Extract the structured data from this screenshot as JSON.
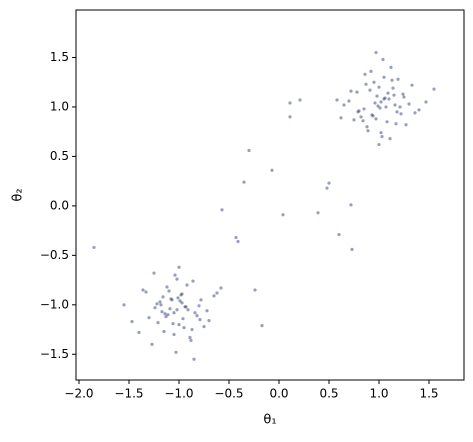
{
  "chart_data": {
    "type": "scatter",
    "xlabel": "θ₁",
    "ylabel": "θ₂",
    "color": "#1a2a6c",
    "xlim": [
      -2.03,
      1.85
    ],
    "ylim": [
      -1.76,
      1.98
    ],
    "xticks": [
      {
        "value": -2.0,
        "label": "−2.0"
      },
      {
        "value": -1.5,
        "label": "−1.5"
      },
      {
        "value": -1.0,
        "label": "−1.0"
      },
      {
        "value": -0.5,
        "label": "−0.5"
      },
      {
        "value": 0,
        "label": "0.0"
      },
      {
        "value": 0.5,
        "label": "0.5"
      },
      {
        "value": 1,
        "label": "1.0"
      },
      {
        "value": 1.5,
        "label": "1.5"
      }
    ],
    "yticks": [
      {
        "value": -1.5,
        "label": "−1.5"
      },
      {
        "value": -1.0,
        "label": "−1.0"
      },
      {
        "value": -0.5,
        "label": "−0.5"
      },
      {
        "value": 0,
        "label": "0.0"
      },
      {
        "value": 0.5,
        "label": "0.5"
      },
      {
        "value": 1,
        "label": "1.0"
      },
      {
        "value": 1.5,
        "label": "1.5"
      }
    ],
    "x": [
      1.02,
      0.85,
      1.15,
      0.97,
      1.21,
      0.78,
      1.05,
      0.93,
      1.1,
      1.3,
      0.88,
      1.0,
      1.18,
      0.7,
      1.08,
      0.95,
      1.25,
      0.82,
      1.12,
      0.99,
      1.4,
      0.65,
      1.03,
      0.91,
      1.17,
      1.06,
      0.86,
      1.22,
      0.96,
      1.33,
      0.75,
      1.09,
      1.01,
      0.89,
      1.14,
      0.58,
      1.47,
      1.04,
      0.94,
      1.19,
      0.8,
      1.27,
      0.98,
      1.11,
      0.87,
      1.36,
      0.72,
      1.07,
      1.0,
      0.92,
      1.24,
      0.84,
      1.16,
      1.05,
      0.79,
      1.55,
      0.62,
      1.13,
      0.97,
      1.02,
      -1.02,
      -0.85,
      -1.15,
      -0.97,
      -1.21,
      -0.78,
      -1.05,
      -0.93,
      -1.1,
      -1.3,
      -0.88,
      -1.0,
      -1.18,
      -0.7,
      -1.08,
      -0.95,
      -1.25,
      -0.82,
      -1.12,
      -0.99,
      -1.4,
      -0.65,
      -1.03,
      -0.91,
      -1.17,
      -1.06,
      -0.86,
      -1.22,
      -0.96,
      -1.33,
      -0.75,
      -1.09,
      -1.01,
      -0.89,
      -1.14,
      -0.58,
      -1.47,
      -1.04,
      -0.94,
      -1.19,
      -0.8,
      -1.27,
      -0.98,
      -1.11,
      -0.87,
      -1.36,
      -0.72,
      -1.07,
      -1.0,
      -0.92,
      -1.24,
      -0.84,
      -1.16,
      -1.05,
      -0.79,
      -1.55,
      -0.62,
      -1.13,
      -0.97,
      -1.02,
      -1.85,
      -0.35,
      -0.3,
      -0.07,
      0.04,
      0.11,
      0.11,
      0.21,
      0.39,
      0.48,
      0.5,
      0.6,
      0.73,
      0.72,
      -0.57,
      -0.41,
      -0.43,
      -0.17,
      -0.24
    ],
    "values": [
      1.05,
      0.98,
      1.12,
      0.88,
      1.0,
      1.15,
      1.3,
      0.92,
      1.08,
      1.03,
      0.8,
      1.2,
      0.95,
      1.06,
      0.85,
      1.25,
      1.1,
      0.9,
      1.4,
      1.01,
      0.97,
      1.02,
      0.7,
      1.17,
      0.83,
      1.09,
      1.33,
      0.93,
      1.04,
      1.22,
      0.87,
      1.14,
      0.99,
      0.76,
      1.19,
      1.07,
      1.05,
      1.48,
      0.91,
      1.28,
      0.96,
      0.82,
      1.11,
      0.68,
      1.23,
      0.94,
      1.16,
      1.0,
      0.62,
      1.36,
      1.13,
      0.86,
      1.02,
      1.08,
      0.95,
      1.18,
      0.89,
      1.27,
      1.55,
      0.74,
      -0.74,
      -1.55,
      -1.27,
      -0.89,
      -1.18,
      -0.95,
      -1.08,
      -1.02,
      -0.86,
      -1.13,
      -1.36,
      -0.62,
      -1.0,
      -1.16,
      -0.94,
      -1.23,
      -0.68,
      -1.11,
      -0.82,
      -0.96,
      -1.28,
      -0.91,
      -1.48,
      -1.05,
      -1.07,
      -1.19,
      -0.76,
      -0.99,
      -1.14,
      -0.87,
      -1.22,
      -1.04,
      -0.93,
      -1.33,
      -1.09,
      -0.83,
      -1.17,
      -0.7,
      -1.02,
      -0.97,
      -1.01,
      -1.4,
      -0.9,
      -1.1,
      -1.25,
      -0.85,
      -1.06,
      -0.95,
      -1.2,
      -0.8,
      -1.03,
      -1.08,
      -0.92,
      -1.3,
      -1.15,
      -1.0,
      -0.88,
      -1.12,
      -0.98,
      -1.05,
      -0.42,
      0.24,
      0.56,
      0.36,
      -0.09,
      0.9,
      1.04,
      1.07,
      -0.07,
      0.18,
      0.23,
      -0.29,
      -0.44,
      0.01,
      -0.04,
      -0.36,
      -0.32,
      -1.21,
      -0.85
    ]
  }
}
